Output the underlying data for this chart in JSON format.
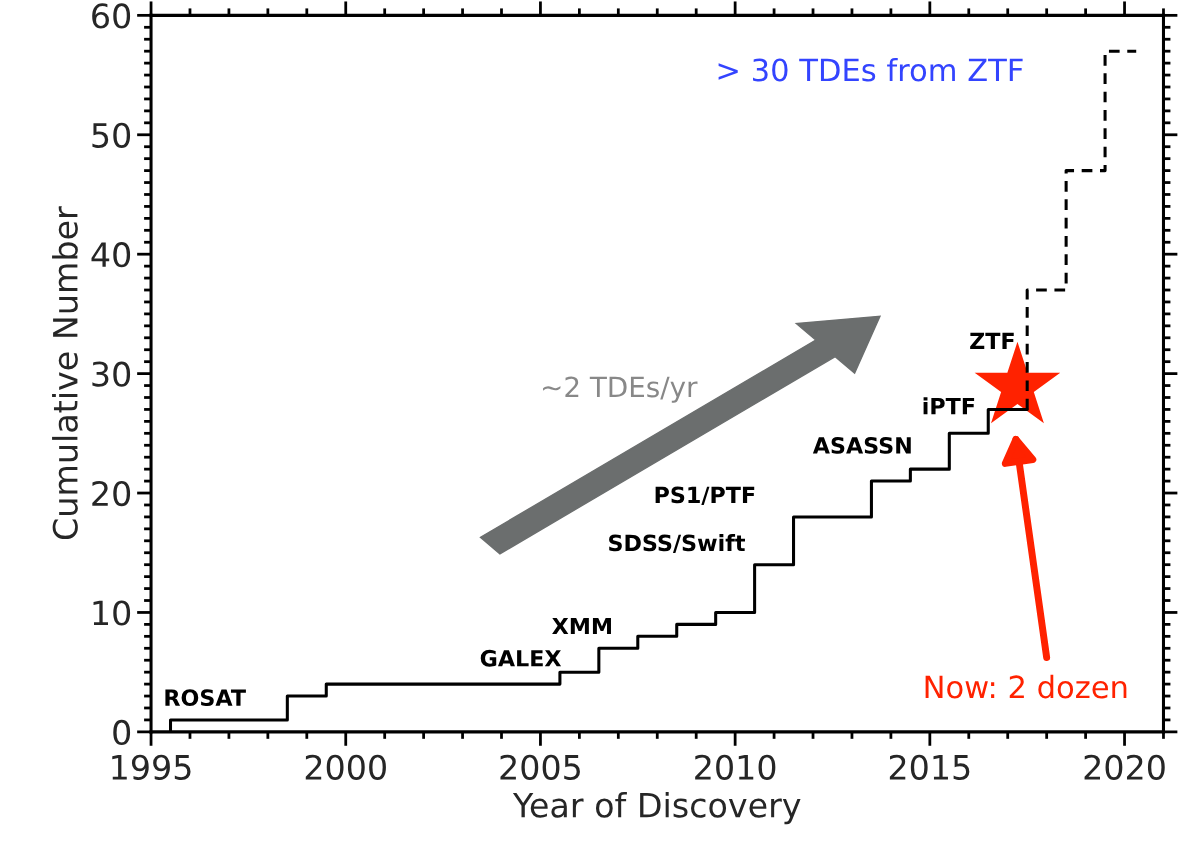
{
  "chart_data": {
    "type": "step",
    "xlabel": "Year of Discovery",
    "ylabel": "Cumulative Number",
    "xlim": [
      1995,
      2021
    ],
    "ylim": [
      0,
      60
    ],
    "xticks": [
      1995,
      2000,
      2005,
      2010,
      2015,
      2020
    ],
    "yticks": [
      0,
      10,
      20,
      30,
      40,
      50,
      60
    ],
    "grid": false,
    "legend": false,
    "series": [
      {
        "color": "#000000",
        "line_style": "solid",
        "x": [
          1995.5,
          1995.5,
          1998.5,
          1999.5,
          2005.5,
          2006.5,
          2007.5,
          2008.5,
          2009.5,
          2010.5,
          2011.5,
          2013.5,
          2014.5,
          2015.5,
          2016.5,
          2017.5
        ],
        "values": [
          0,
          1,
          3,
          4,
          5,
          7,
          8,
          9,
          10,
          14,
          18,
          21,
          22,
          25,
          27,
          27
        ]
      },
      {
        "color": "#000000",
        "line_style": "dashed",
        "x": [
          2017.5,
          2017.5,
          2018.5,
          2019.5,
          2020.3
        ],
        "values": [
          27,
          37,
          47,
          57,
          57
        ]
      },
      {
        "type": "scatter",
        "color": "#ff2200",
        "marker": "star",
        "x": [
          2017.25
        ],
        "values": [
          28.9
        ]
      }
    ],
    "annotations": [
      "ROSAT",
      "GALEX",
      "XMM",
      "SDSS/Swift",
      "PS1/PTF",
      "ASASSN",
      "iPTF",
      "ZTF",
      "> 30 TDEs from ZTF",
      "~2 TDEs/yr",
      "Now: 2 dozen"
    ]
  }
}
